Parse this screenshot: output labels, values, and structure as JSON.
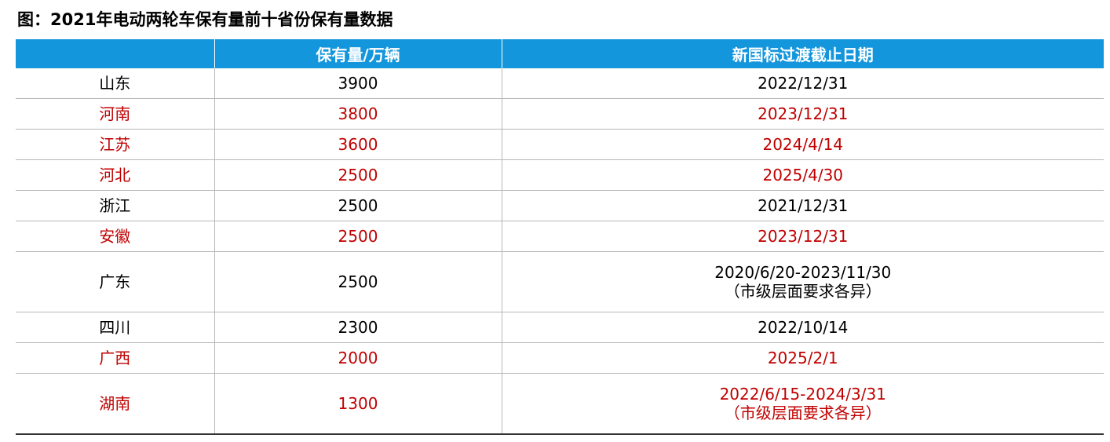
{
  "title": "图：2021年电动两轮车保有量前十省份保有量数据",
  "headers": [
    "",
    "保有量/万辆",
    "新国标过渡截止日期"
  ],
  "rows": [
    {
      "province": "山东",
      "count": "3900",
      "deadline": "2022/12/31",
      "note": "",
      "highlight": false
    },
    {
      "province": "河南",
      "count": "3800",
      "deadline": "2023/12/31",
      "note": "",
      "highlight": true
    },
    {
      "province": "江苏",
      "count": "3600",
      "deadline": "2024/4/14",
      "note": "",
      "highlight": true
    },
    {
      "province": "河北",
      "count": "2500",
      "deadline": "2025/4/30",
      "note": "",
      "highlight": true
    },
    {
      "province": "浙江",
      "count": "2500",
      "deadline": "2021/12/31",
      "note": "",
      "highlight": false
    },
    {
      "province": "安徽",
      "count": "2500",
      "deadline": "2023/12/31",
      "note": "",
      "highlight": true
    },
    {
      "province": "广东",
      "count": "2500",
      "deadline": "2020/6/20-2023/11/30",
      "note": "（市级层面要求各异）",
      "highlight": false
    },
    {
      "province": "四川",
      "count": "2300",
      "deadline": "2022/10/14",
      "note": "",
      "highlight": false
    },
    {
      "province": "广西",
      "count": "2000",
      "deadline": "2025/2/1",
      "note": "",
      "highlight": true
    },
    {
      "province": "湖南",
      "count": "1300",
      "deadline": "2022/6/15-2024/3/31",
      "note": "（市级层面要求各异）",
      "highlight": true
    }
  ],
  "colors": {
    "header_bg": "#1496dc",
    "highlight_text": "#c00000"
  }
}
